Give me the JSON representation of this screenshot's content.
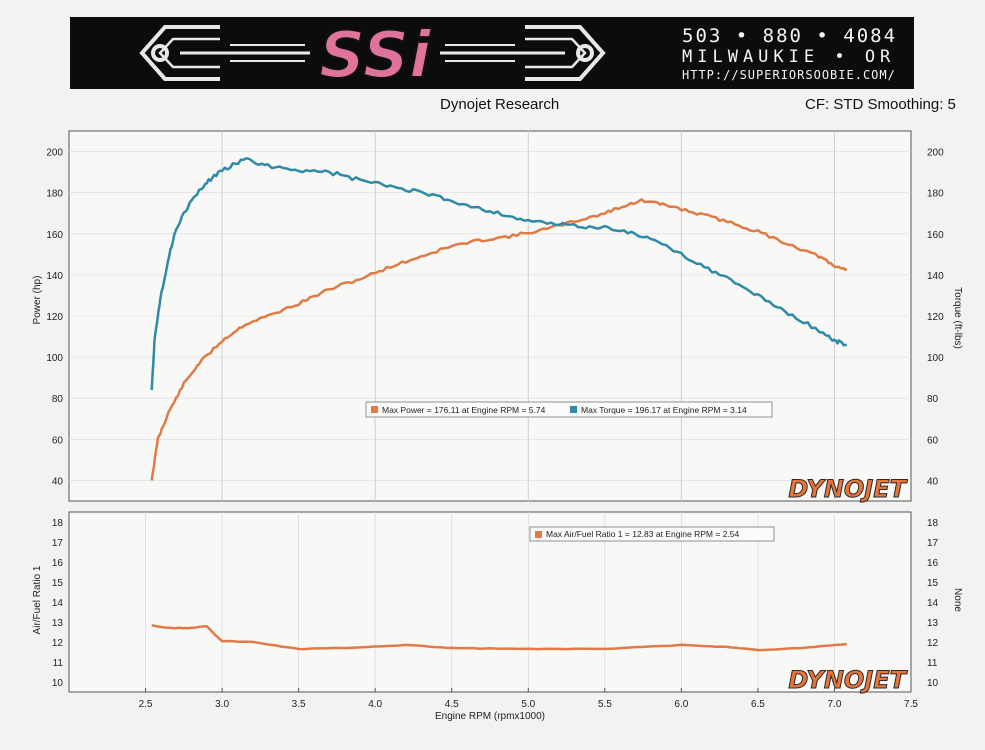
{
  "banner": {
    "logo_text": "SSi",
    "phone": "503 • 880 • 4084",
    "city": "MILWAUKIE • OR",
    "url": "HTTP://SUPERIORSOOBIE.COM/"
  },
  "header": {
    "left": "Dynojet Research",
    "right": "CF: STD Smoothing: 5"
  },
  "brand_mark": "DYNOJET",
  "colors": {
    "power": "#e07b45",
    "torque": "#2f8aa6",
    "afr": "#e07b45",
    "brand_orange": "#e9743a"
  },
  "chart_data": [
    {
      "type": "line",
      "title": "",
      "xlabel": "",
      "ylabel": "Power (hp)",
      "ylabel_right": "Torque (ft-lbs)",
      "xlim": [
        2.0,
        7.5
      ],
      "ylim": [
        30,
        210
      ],
      "y_ticks": [
        40,
        60,
        80,
        100,
        120,
        140,
        160,
        180,
        200
      ],
      "x_gridlines": [
        3.0,
        4.0,
        5.0,
        6.0,
        7.0
      ],
      "grid": true,
      "series": [
        {
          "name": "Max Power = 176.11 at Engine RPM = 5.74",
          "axis": "left",
          "x": [
            2.54,
            2.58,
            2.65,
            2.75,
            2.85,
            3.0,
            3.15,
            3.3,
            3.5,
            3.7,
            3.9,
            4.1,
            4.3,
            4.5,
            4.7,
            4.9,
            5.1,
            5.3,
            5.5,
            5.6,
            5.74,
            5.9,
            6.1,
            6.3,
            6.5,
            6.7,
            6.9,
            7.0,
            7.08
          ],
          "y": [
            40,
            60,
            73,
            87,
            97,
            108,
            116,
            120,
            126,
            133,
            138,
            144,
            149,
            154,
            157,
            159,
            162,
            166,
            170,
            173,
            176.1,
            174,
            170,
            166,
            161,
            155,
            149,
            144,
            143
          ]
        },
        {
          "name": "Max Torque = 196.17 at Engine RPM = 3.14",
          "axis": "right",
          "x": [
            2.54,
            2.56,
            2.6,
            2.65,
            2.7,
            2.8,
            2.9,
            3.0,
            3.14,
            3.3,
            3.5,
            3.7,
            3.9,
            4.1,
            4.3,
            4.5,
            4.7,
            4.9,
            5.1,
            5.3,
            5.5,
            5.7,
            5.9,
            6.1,
            6.3,
            6.5,
            6.7,
            6.9,
            7.0,
            7.08
          ],
          "y": [
            84,
            110,
            130,
            148,
            163,
            176,
            185,
            191,
            196.2,
            193,
            191,
            190,
            186,
            183,
            180,
            176,
            172,
            168,
            165,
            164,
            163,
            160,
            154,
            146,
            138,
            130,
            121,
            113,
            108,
            106
          ]
        }
      ]
    },
    {
      "type": "line",
      "title": "",
      "xlabel": "Engine RPM (rpmx1000)",
      "ylabel": "Air/Fuel Ratio 1",
      "ylabel_right": "None",
      "xlim": [
        2.0,
        7.5
      ],
      "ylim": [
        9.5,
        18.5
      ],
      "y_ticks": [
        10,
        11,
        12,
        13,
        14,
        15,
        16,
        17,
        18
      ],
      "x_ticks": [
        2.5,
        3.0,
        3.5,
        4.0,
        4.5,
        5.0,
        5.5,
        6.0,
        6.5,
        7.0,
        7.5
      ],
      "x_tick_labels": [
        "2.5",
        "3.0",
        "3.5",
        "4.0",
        "4.5",
        "5.0",
        "5.5",
        "6.0",
        "6.5",
        "7.0",
        "7.5"
      ],
      "grid": true,
      "series": [
        {
          "name": "Max Air/Fuel Ratio 1 = 12.83 at Engine RPM = 2.54",
          "x": [
            2.54,
            2.65,
            2.8,
            2.9,
            2.95,
            3.0,
            3.2,
            3.5,
            3.8,
            4.2,
            4.5,
            5.0,
            5.5,
            6.0,
            6.3,
            6.5,
            6.8,
            7.08
          ],
          "y": [
            12.83,
            12.7,
            12.7,
            12.8,
            12.4,
            12.05,
            12.0,
            11.65,
            11.7,
            11.85,
            11.7,
            11.65,
            11.65,
            11.85,
            11.75,
            11.6,
            11.7,
            11.9
          ]
        }
      ]
    }
  ]
}
